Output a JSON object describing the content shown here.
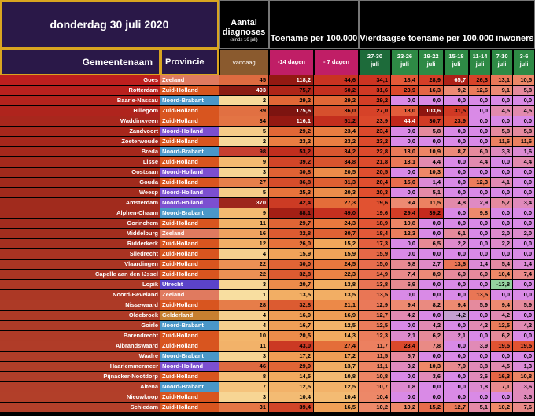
{
  "header": {
    "date": "donderdag 30 juli 2020",
    "aantal_title": "Aantal diagnoses",
    "aantal_sub": "(sinds 16 juli)",
    "toename_title": "Toename per 100.000",
    "vier_title": "Vierdaagse toename per 100.000 inwoners",
    "gemeente_label": "Gemeentenaam",
    "provincie_label": "Provincie"
  },
  "chart_data": {
    "type": "table",
    "columns": [
      "Vandaag",
      "-14 dagen",
      "- 7 dagen",
      "27-30 juli",
      "23-26 juli",
      "19-22 juli",
      "15-18 juli",
      "11-14 juli",
      "7-10 juli",
      "3-6 juli"
    ],
    "rows": [
      {
        "gemeente": "Goes",
        "provincie": "Zeeland",
        "values": [
          "45",
          "118,2",
          "44,6",
          "34,1",
          "18,4",
          "28,9",
          "65,7",
          "26,3",
          "13,1",
          "10,5"
        ]
      },
      {
        "gemeente": "Rotterdam",
        "provincie": "Zuid-Holland",
        "values": [
          "493",
          "75,7",
          "50,2",
          "31,6",
          "23,9",
          "16,3",
          "9,2",
          "12,6",
          "9,1",
          "5,8"
        ]
      },
      {
        "gemeente": "Baarle-Nassau",
        "provincie": "Noord-Brabant",
        "values": [
          "2",
          "29,2",
          "29,2",
          "29,2",
          "0,0",
          "0,0",
          "0,0",
          "0,0",
          "0,0",
          "0,0"
        ]
      },
      {
        "gemeente": "Hillegom",
        "provincie": "Zuid-Holland",
        "values": [
          "39",
          "175,6",
          "36,0",
          "27,0",
          "18,0",
          "103,6",
          "31,5",
          "0,0",
          "4,5",
          "4,5"
        ]
      },
      {
        "gemeente": "Waddinxveen",
        "provincie": "Zuid-Holland",
        "values": [
          "34",
          "116,1",
          "51,2",
          "23,9",
          "44,4",
          "30,7",
          "23,9",
          "0,0",
          "0,0",
          "0,0"
        ]
      },
      {
        "gemeente": "Zandvoort",
        "provincie": "Noord-Holland",
        "values": [
          "5",
          "29,2",
          "23,4",
          "23,4",
          "0,0",
          "5,8",
          "0,0",
          "0,0",
          "5,8",
          "5,8"
        ]
      },
      {
        "gemeente": "Zoeterwoude",
        "provincie": "Zuid-Holland",
        "values": [
          "2",
          "23,2",
          "23,2",
          "23,2",
          "0,0",
          "0,0",
          "0,0",
          "0,0",
          "11,6",
          "11,6"
        ]
      },
      {
        "gemeente": "Breda",
        "provincie": "Noord-Brabant",
        "values": [
          "98",
          "53,2",
          "34,2",
          "22,8",
          "13,0",
          "10,9",
          "8,7",
          "6,0",
          "3,3",
          "1,6"
        ]
      },
      {
        "gemeente": "Lisse",
        "provincie": "Zuid-Holland",
        "values": [
          "9",
          "39,2",
          "34,8",
          "21,8",
          "13,1",
          "4,4",
          "0,0",
          "4,4",
          "0,0",
          "4,4"
        ]
      },
      {
        "gemeente": "Oostzaan",
        "provincie": "Noord-Holland",
        "values": [
          "3",
          "30,8",
          "20,5",
          "20,5",
          "0,0",
          "10,3",
          "0,0",
          "0,0",
          "0,0",
          "0,0"
        ]
      },
      {
        "gemeente": "Gouda",
        "provincie": "Zuid-Holland",
        "values": [
          "27",
          "36,8",
          "31,3",
          "20,4",
          "15,0",
          "1,4",
          "0,0",
          "12,3",
          "4,1",
          "0,0"
        ]
      },
      {
        "gemeente": "Weesp",
        "provincie": "Noord-Holland",
        "values": [
          "5",
          "25,3",
          "20,3",
          "20,3",
          "0,0",
          "5,1",
          "0,0",
          "0,0",
          "0,0",
          "0,0"
        ]
      },
      {
        "gemeente": "Amsterdam",
        "provincie": "Noord-Holland",
        "values": [
          "370",
          "42,4",
          "27,3",
          "19,6",
          "9,4",
          "11,5",
          "4,8",
          "2,9",
          "5,7",
          "3,4"
        ]
      },
      {
        "gemeente": "Alphen-Chaam",
        "provincie": "Noord-Brabant",
        "values": [
          "9",
          "88,1",
          "49,0",
          "19,6",
          "29,4",
          "39,2",
          "0,0",
          "9,8",
          "0,0",
          "0,0"
        ]
      },
      {
        "gemeente": "Gorinchem",
        "provincie": "Zuid-Holland",
        "values": [
          "11",
          "29,7",
          "24,3",
          "18,9",
          "10,8",
          "0,0",
          "0,0",
          "0,0",
          "0,0",
          "0,0"
        ]
      },
      {
        "gemeente": "Middelburg",
        "provincie": "Zeeland",
        "values": [
          "16",
          "32,8",
          "30,7",
          "18,4",
          "12,3",
          "0,0",
          "6,1",
          "0,0",
          "2,0",
          "2,0"
        ]
      },
      {
        "gemeente": "Ridderkerk",
        "provincie": "Zuid-Holland",
        "values": [
          "12",
          "26,0",
          "15,2",
          "17,3",
          "0,0",
          "6,5",
          "2,2",
          "0,0",
          "2,2",
          "0,0"
        ]
      },
      {
        "gemeente": "Sliedrecht",
        "provincie": "Zuid-Holland",
        "values": [
          "4",
          "15,9",
          "15,9",
          "15,9",
          "0,0",
          "0,0",
          "0,0",
          "0,0",
          "0,0",
          "0,0"
        ]
      },
      {
        "gemeente": "Vlaardingen",
        "provincie": "Zuid-Holland",
        "values": [
          "22",
          "30,0",
          "24,5",
          "15,0",
          "6,8",
          "2,7",
          "13,6",
          "1,4",
          "5,4",
          "1,4"
        ]
      },
      {
        "gemeente": "Capelle aan den IJssel",
        "provincie": "Zuid-Holland",
        "values": [
          "22",
          "32,8",
          "22,3",
          "14,9",
          "7,4",
          "8,9",
          "6,0",
          "6,0",
          "10,4",
          "7,4"
        ]
      },
      {
        "gemeente": "Lopik",
        "provincie": "Utrecht",
        "values": [
          "3",
          "20,7",
          "13,8",
          "13,8",
          "6,9",
          "0,0",
          "0,0",
          "0,0",
          "-13,8",
          "0,0"
        ]
      },
      {
        "gemeente": "Noord-Beveland",
        "provincie": "Zeeland",
        "values": [
          "1",
          "13,5",
          "13,5",
          "13,5",
          "0,0",
          "0,0",
          "0,0",
          "13,5",
          "0,0",
          "0,0"
        ]
      },
      {
        "gemeente": "Nissewaard",
        "provincie": "Zuid-Holland",
        "values": [
          "28",
          "32,8",
          "21,1",
          "12,9",
          "9,4",
          "8,2",
          "9,4",
          "5,9",
          "9,4",
          "5,9"
        ]
      },
      {
        "gemeente": "Oldebroek",
        "provincie": "Gelderland",
        "values": [
          "4",
          "16,9",
          "16,9",
          "12,7",
          "4,2",
          "0,0",
          "-4,2",
          "0,0",
          "4,2",
          "0,0"
        ]
      },
      {
        "gemeente": "Goirle",
        "provincie": "Noord-Brabant",
        "values": [
          "4",
          "16,7",
          "12,5",
          "12,5",
          "0,0",
          "4,2",
          "0,0",
          "4,2",
          "12,5",
          "4,2"
        ]
      },
      {
        "gemeente": "Barendrecht",
        "provincie": "Zuid-Holland",
        "values": [
          "10",
          "20,5",
          "14,3",
          "12,3",
          "2,1",
          "6,2",
          "2,1",
          "0,0",
          "6,2",
          "0,0"
        ]
      },
      {
        "gemeente": "Albrandswaard",
        "provincie": "Zuid-Holland",
        "values": [
          "11",
          "43,0",
          "27,4",
          "11,7",
          "23,4",
          "7,8",
          "0,0",
          "3,9",
          "19,5",
          "19,5"
        ]
      },
      {
        "gemeente": "Waalre",
        "provincie": "Noord-Brabant",
        "values": [
          "3",
          "17,2",
          "17,2",
          "11,5",
          "5,7",
          "0,0",
          "0,0",
          "0,0",
          "0,0",
          "0,0"
        ]
      },
      {
        "gemeente": "Haarlemmermeer",
        "provincie": "Noord-Holland",
        "values": [
          "46",
          "29,9",
          "13,7",
          "11,1",
          "3,2",
          "10,3",
          "7,0",
          "3,8",
          "4,5",
          "1,3"
        ]
      },
      {
        "gemeente": "Pijnacker-Nootdorp",
        "provincie": "Zuid-Holland",
        "values": [
          "8",
          "14,5",
          "10,8",
          "10,8",
          "0,0",
          "3,6",
          "0,0",
          "3,6",
          "16,3",
          "10,8"
        ]
      },
      {
        "gemeente": "Altena",
        "provincie": "Noord-Brabant",
        "values": [
          "7",
          "12,5",
          "12,5",
          "10,7",
          "1,8",
          "0,0",
          "0,0",
          "1,8",
          "7,1",
          "3,6"
        ]
      },
      {
        "gemeente": "Nieuwkoop",
        "provincie": "Zuid-Holland",
        "values": [
          "3",
          "10,4",
          "10,4",
          "10,4",
          "0,0",
          "0,0",
          "0,0",
          "0,0",
          "0,0",
          "3,5"
        ]
      },
      {
        "gemeente": "Schiedam",
        "provincie": "Zuid-Holland",
        "values": [
          "31",
          "39,4",
          "16,5",
          "10,2",
          "10,2",
          "15,2",
          "12,7",
          "5,1",
          "10,2",
          "7,6"
        ]
      }
    ]
  },
  "colors": {
    "header_dark": "#2a1848",
    "header_border": "#d9a520",
    "col_vandaag": "#8a5a2e",
    "col_toename": "#c01e66",
    "col_vier_recent": "#1d6b3a",
    "col_vier_other": "#2e8a45",
    "prov_zuid_holland": "#d8551f",
    "prov_noord_holland": "#7c4fd0",
    "prov_noord_brabant": "#4a97c8",
    "prov_zeeland": "#e07a5f",
    "prov_utrecht": "#5b43c9",
    "prov_gelderland": "#c78030"
  }
}
